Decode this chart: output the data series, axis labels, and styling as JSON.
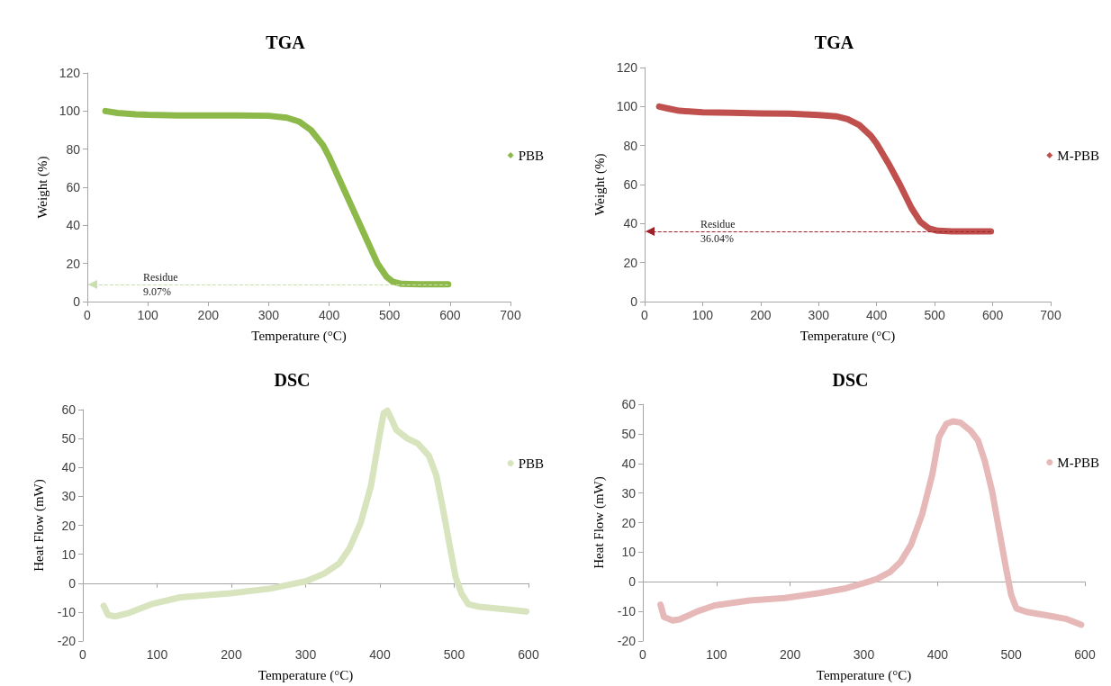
{
  "chart_data": [
    {
      "type": "line",
      "title": "TGA",
      "xlabel": "Temperature (°C)",
      "ylabel": "Weight (%)",
      "xlim": [
        0,
        700
      ],
      "xticks": [
        0,
        100,
        200,
        300,
        400,
        500,
        600,
        700
      ],
      "ylim": [
        0,
        120
      ],
      "yticks": [
        0,
        20,
        40,
        60,
        80,
        100,
        120
      ],
      "grid": false,
      "legend": "right",
      "series": [
        {
          "name": "PBB",
          "color": "#8db84a",
          "x": [
            30,
            50,
            80,
            100,
            150,
            200,
            250,
            300,
            330,
            350,
            370,
            390,
            400,
            420,
            440,
            460,
            480,
            495,
            505,
            520,
            550,
            597
          ],
          "values": [
            100,
            99,
            98.3,
            98,
            97.7,
            97.7,
            97.7,
            97.5,
            96.5,
            94.5,
            90,
            82,
            76,
            62,
            48,
            34,
            20,
            13,
            10.5,
            9.3,
            9.1,
            9.1
          ]
        }
      ],
      "ref_lines": [
        {
          "axis": "y",
          "value": 9.07,
          "label": "Residue\n9.07%",
          "color": "#c9dfb0",
          "line_style": "dashed"
        }
      ]
    },
    {
      "type": "line",
      "title": "TGA",
      "xlabel": "Temperature (°C)",
      "ylabel": "Weight (%)",
      "xlim": [
        0,
        700
      ],
      "xticks": [
        0,
        100,
        200,
        300,
        400,
        500,
        600,
        700
      ],
      "ylim": [
        0,
        120
      ],
      "yticks": [
        0,
        20,
        40,
        60,
        80,
        100,
        120
      ],
      "grid": false,
      "legend": "right",
      "series": [
        {
          "name": "M-PBB",
          "color": "#c0504d",
          "x": [
            25,
            40,
            60,
            100,
            150,
            200,
            250,
            300,
            330,
            350,
            370,
            390,
            400,
            420,
            440,
            460,
            475,
            490,
            505,
            530,
            597
          ],
          "values": [
            100,
            99,
            97.8,
            97,
            96.8,
            96.5,
            96.3,
            95.7,
            95,
            93.5,
            90.5,
            85,
            81,
            71,
            60,
            48,
            41,
            37.5,
            36.3,
            36,
            36
          ]
        }
      ],
      "ref_lines": [
        {
          "axis": "y",
          "value": 36.04,
          "label": "Residue\n36.04%",
          "color": "#a0202a",
          "line_style": "dashed"
        }
      ]
    },
    {
      "type": "line",
      "title": "DSC",
      "xlabel": "Temperature (°C)",
      "ylabel": "Heat Flow (mW)",
      "xlim": [
        0,
        600
      ],
      "xticks": [
        0,
        100,
        200,
        300,
        400,
        500,
        600
      ],
      "ylim": [
        -20,
        60
      ],
      "yticks": [
        -20,
        -10,
        0,
        10,
        20,
        30,
        40,
        50,
        60
      ],
      "legend": "right",
      "series": [
        {
          "name": "PBB",
          "color": "#d7e4bd",
          "x": [
            28,
            34,
            44,
            63,
            92,
            131,
            199,
            252,
            277,
            301,
            325,
            345,
            359,
            374,
            388,
            398,
            405,
            410,
            415,
            422,
            437,
            451,
            466,
            476,
            485,
            495,
            502,
            510,
            519,
            534,
            568,
            597
          ],
          "values": [
            -7.8,
            -11,
            -11.5,
            -10.2,
            -7.3,
            -4.9,
            -3.5,
            -1.9,
            -0.6,
            0.7,
            3.3,
            6.8,
            12,
            20.8,
            33.7,
            48.9,
            58.8,
            59.6,
            57,
            53,
            50,
            48.3,
            44,
            37.2,
            25.5,
            11.5,
            2,
            -3.7,
            -7.3,
            -8.2,
            -9,
            -9.8
          ]
        }
      ]
    },
    {
      "type": "line",
      "title": "DSC",
      "xlabel": "Temperature (°C)",
      "ylabel": "Heat Flow (mW)",
      "xlim": [
        0,
        600
      ],
      "xticks": [
        0,
        100,
        200,
        300,
        400,
        500,
        600
      ],
      "ylim": [
        -20,
        60
      ],
      "yticks": [
        -20,
        -10,
        0,
        10,
        20,
        30,
        40,
        50,
        60
      ],
      "legend": "right",
      "series": [
        {
          "name": "M-PBB",
          "color": "#e6b9b8",
          "x": [
            24,
            28.6,
            40.5,
            50,
            74,
            97.6,
            145,
            193,
            240,
            274,
            298,
            317,
            336,
            350,
            364,
            379,
            393,
            402,
            412,
            421,
            431,
            445,
            455,
            464,
            474,
            483,
            493,
            500,
            507,
            521,
            550,
            574,
            595
          ],
          "values": [
            -7.7,
            -11.9,
            -13.1,
            -12.7,
            -10,
            -8,
            -6.3,
            -5.5,
            -3.8,
            -2.3,
            -0.6,
            0.9,
            3.4,
            6.8,
            12.5,
            22.7,
            36.4,
            48.9,
            53.4,
            54.2,
            53.8,
            51,
            47.7,
            40.9,
            30.7,
            18.2,
            4.5,
            -4.5,
            -9,
            -10.2,
            -11.4,
            -12.5,
            -14.5
          ]
        }
      ]
    }
  ]
}
